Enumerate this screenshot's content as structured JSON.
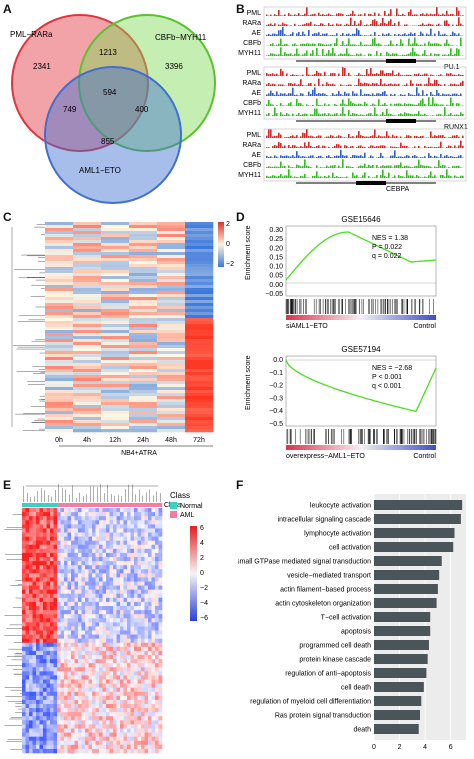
{
  "panels": {
    "A": {
      "letter": "A",
      "sets": [
        "PML−RARa",
        "CBFb−MYH11",
        "AML1−ETO"
      ],
      "counts": {
        "pml_only": "2341",
        "pml_cbf": "1213",
        "cbf_only": "3396",
        "all": "594",
        "pml_aml": "749",
        "cbf_aml": "400",
        "aml_only": "855"
      },
      "colors": {
        "pml": "#e2343f",
        "cbf": "#7ed957",
        "aml": "#3f6fd1"
      }
    },
    "B": {
      "letter": "B",
      "tracks": [
        "PML",
        "RARa",
        "AE",
        "CBFb",
        "MYH11"
      ],
      "genes": [
        "PU.1",
        "RUNX1",
        "CEBPA"
      ],
      "colors": {
        "pml": "#e02424",
        "rara": "#e02424",
        "ae": "#2f5fcc",
        "cbfb": "#33bb22",
        "myh11": "#33bb22"
      }
    },
    "C": {
      "letter": "C",
      "xlabels": [
        "0h",
        "4h",
        "12h",
        "24h",
        "48h",
        "72h"
      ],
      "xtitle": "NB4+ATRA",
      "scale": [
        "2",
        "0",
        "−2"
      ]
    },
    "D": {
      "letter": "D",
      "plots": [
        {
          "title": "GSE15646",
          "ylabel": "Enrichment score",
          "yticks": [
            "0.30",
            "0.25",
            "0.20",
            "0.15",
            "0.10",
            "0.05",
            "0.00",
            "−0.05"
          ],
          "stats": [
            "NES = 1.38",
            "P = 0.022",
            "q = 0.022"
          ],
          "left": "siAML1−ETO",
          "right": "Control"
        },
        {
          "title": "GSE57194",
          "ylabel": "Enrichment score",
          "yticks": [
            "0.0",
            "−0.1",
            "−0.2",
            "−0.3",
            "−0.4",
            "−0.5"
          ],
          "stats": [
            "NES = −2.68",
            "P < 0.001",
            "q < 0.001"
          ],
          "left": "overexpress−AML1−ETO",
          "right": "Control"
        }
      ]
    },
    "E": {
      "letter": "E",
      "class_label": "Class",
      "legend_title": "Class",
      "legend_items": [
        {
          "label": "Normal",
          "color": "#39d2c0"
        },
        {
          "label": "AML",
          "color": "#f27ea0"
        }
      ],
      "scale": [
        "6",
        "4",
        "2",
        "0",
        "−2",
        "−4",
        "−6"
      ]
    },
    "F": {
      "letter": "F",
      "bar_color": "#4a5559",
      "xticks": [
        "0",
        "2",
        "4",
        "6"
      ]
    }
  },
  "chart_data": {
    "type": "bar",
    "orientation": "horizontal",
    "categories": [
      "leukocyte activation",
      "intracellular signaling cascade",
      "lymphocyte activation",
      "cell activation",
      "regulation of small GTPase mediated signal transduction",
      "vesicle−mediated transport",
      "actin filament−based process",
      "actin cytoskeleton organization",
      "T−cell activation",
      "apoptosis",
      "programmed cell death",
      "protein kinase cascade",
      "regulation of anti−apoptosis",
      "cell death",
      "regulation of myeloid cell differentiation",
      "Ras protein signal transduction",
      "death"
    ],
    "values": [
      6.9,
      6.8,
      6.3,
      6.2,
      5.3,
      5.1,
      5.0,
      4.9,
      4.4,
      4.4,
      4.3,
      4.2,
      4.1,
      3.9,
      3.7,
      3.6,
      3.5
    ],
    "xlim": [
      0,
      7.2
    ],
    "xticks": [
      0,
      2,
      4,
      6
    ]
  }
}
